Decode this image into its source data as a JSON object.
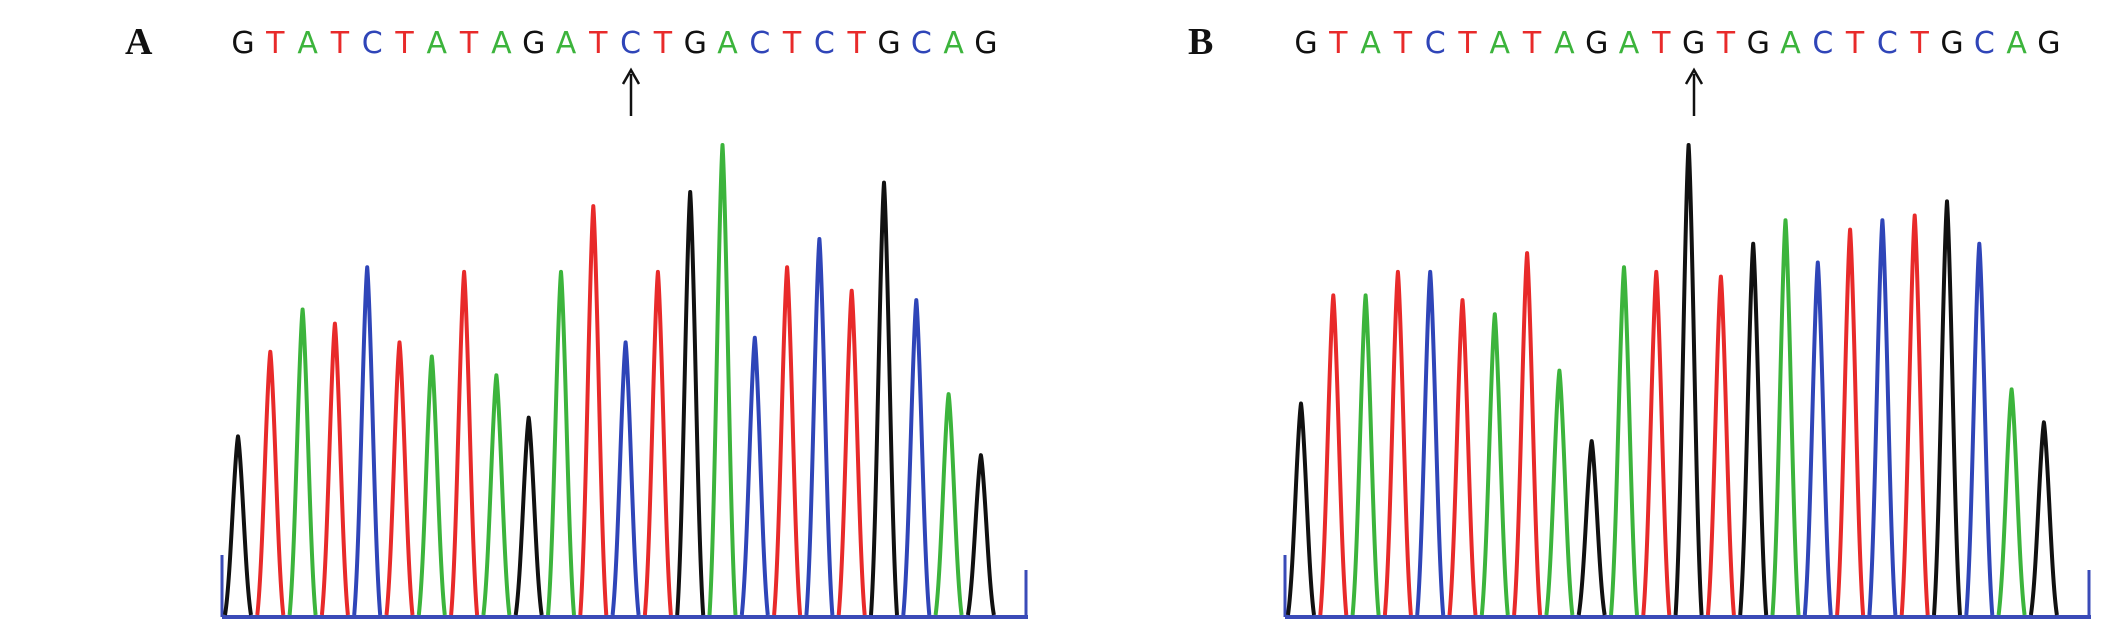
{
  "colors": {
    "A": "#3cb43c",
    "C": "#2f45b8",
    "G": "#111111",
    "T": "#e82a2a",
    "baseline": "#3a4bb8"
  },
  "panels": [
    {
      "id": "A",
      "label": "A",
      "sequence": [
        "G",
        "T",
        "A",
        "T",
        "C",
        "T",
        "A",
        "T",
        "A",
        "G",
        "A",
        "T",
        "C",
        "T",
        "G",
        "A",
        "C",
        "T",
        "C",
        "T",
        "G",
        "C",
        "A",
        "G"
      ],
      "arrow_index": 12,
      "peak_heights": [
        0.38,
        0.56,
        0.65,
        0.62,
        0.74,
        0.58,
        0.55,
        0.73,
        0.51,
        0.42,
        0.73,
        0.87,
        0.58,
        0.73,
        0.9,
        1.0,
        0.59,
        0.74,
        0.8,
        0.69,
        0.92,
        0.67,
        0.47,
        0.34
      ]
    },
    {
      "id": "B",
      "label": "B",
      "sequence": [
        "G",
        "T",
        "A",
        "T",
        "C",
        "T",
        "A",
        "T",
        "A",
        "G",
        "A",
        "T",
        "G",
        "T",
        "G",
        "A",
        "C",
        "T",
        "C",
        "T",
        "G",
        "C",
        "A",
        "G"
      ],
      "arrow_index": 12,
      "peak_heights": [
        0.45,
        0.68,
        0.68,
        0.73,
        0.73,
        0.67,
        0.64,
        0.77,
        0.52,
        0.37,
        0.74,
        0.73,
        1.0,
        0.72,
        0.79,
        0.84,
        0.75,
        0.82,
        0.84,
        0.85,
        0.88,
        0.79,
        0.48,
        0.41
      ]
    }
  ]
}
